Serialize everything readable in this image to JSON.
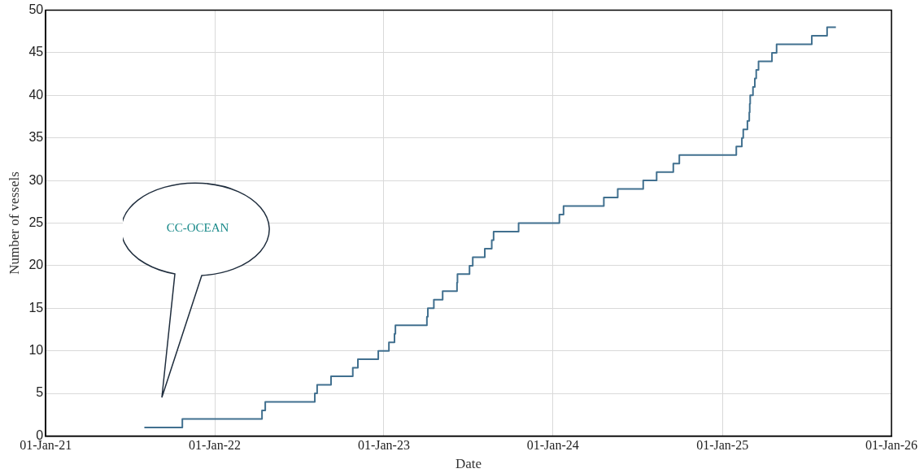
{
  "chart_data": {
    "type": "step",
    "xlabel": "Date",
    "ylabel": "Number of vessels",
    "x": [
      "2021-08-02",
      "2021-10-23",
      "2022-04-13",
      "2022-04-20",
      "2022-08-05",
      "2022-08-10",
      "2022-09-09",
      "2022-10-26",
      "2022-11-06",
      "2022-12-20",
      "2023-01-12",
      "2023-01-24",
      "2023-01-26",
      "2023-04-04",
      "2023-04-06",
      "2023-04-19",
      "2023-05-08",
      "2023-06-08",
      "2023-06-09",
      "2023-07-05",
      "2023-07-12",
      "2023-08-07",
      "2023-08-22",
      "2023-08-26",
      "2023-10-19",
      "2024-01-15",
      "2024-01-24",
      "2024-04-20",
      "2024-05-20",
      "2024-07-14",
      "2024-08-12",
      "2024-09-17",
      "2024-09-30",
      "2025-01-31",
      "2025-02-12",
      "2025-02-15",
      "2025-02-24",
      "2025-02-28",
      "2025-03-01",
      "2025-03-02",
      "2025-03-08",
      "2025-03-12",
      "2025-03-15",
      "2025-03-20",
      "2025-04-18",
      "2025-04-28",
      "2025-07-13",
      "2025-08-15",
      "2025-09-03"
    ],
    "series": [
      {
        "color": "#41708f",
        "values": [
          1,
          2,
          3,
          4,
          5,
          6,
          7,
          8,
          9,
          10,
          11,
          12,
          13,
          14,
          15,
          16,
          17,
          18,
          19,
          20,
          21,
          22,
          23,
          24,
          25,
          26,
          27,
          28,
          29,
          30,
          31,
          32,
          33,
          34,
          35,
          36,
          37,
          38,
          39,
          40,
          41,
          42,
          43,
          44,
          45,
          46,
          47,
          48,
          48
        ]
      }
    ],
    "xlim": [
      "2021-01-01",
      "2026-01-01"
    ],
    "xticks": [
      {
        "value": "2021-01-01",
        "label": "01-Jan-21"
      },
      {
        "value": "2022-01-01",
        "label": "01-Jan-22"
      },
      {
        "value": "2023-01-01",
        "label": "01-Jan-23"
      },
      {
        "value": "2024-01-01",
        "label": "01-Jan-24"
      },
      {
        "value": "2025-01-01",
        "label": "01-Jan-25"
      },
      {
        "value": "2026-01-01",
        "label": "01-Jan-26"
      }
    ],
    "ylim": [
      0,
      50
    ],
    "yticks": [
      0,
      5,
      10,
      15,
      20,
      25,
      30,
      35,
      40,
      45,
      50
    ],
    "grid": true,
    "marker": "none",
    "line_style": "solid",
    "annotations": [
      "CC-OCEAN"
    ]
  }
}
